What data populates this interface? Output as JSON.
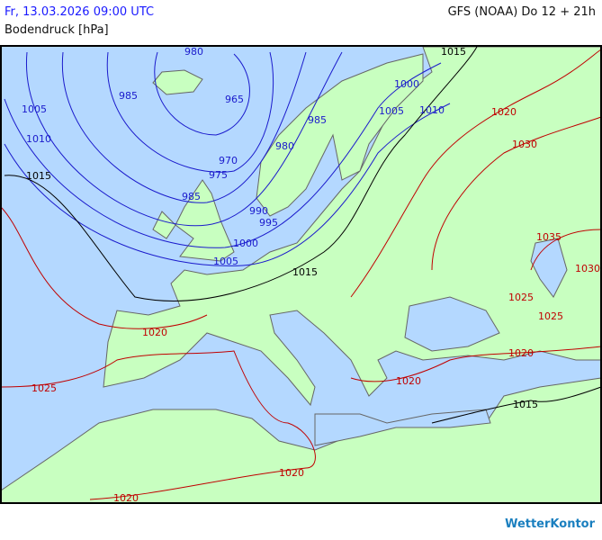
{
  "header": {
    "datetime": "Fr, 13.03.2026 09:00 UTC",
    "model_run": "GFS (NOAA) Do 12 + 21h",
    "parameter": "Bodendruck [hPa]"
  },
  "colors": {
    "sea": "#b4d8ff",
    "land": "#c8ffc0",
    "isobar_low": "#1a1acc",
    "isobar_1015": "#000000",
    "isobar_high": "#c00000",
    "border": "#666666"
  },
  "isobar_labels": [
    "980",
    "985",
    "965",
    "1005",
    "1010",
    "970",
    "975",
    "980",
    "985",
    "985",
    "990",
    "995",
    "1000",
    "1005",
    "1000",
    "1005",
    "1010",
    "1015",
    "1015",
    "1015",
    "1015",
    "1020",
    "1030",
    "1035",
    "1030",
    "1025",
    "1025",
    "1020",
    "1020",
    "1025",
    "1020",
    "1020",
    "1020"
  ],
  "logo": "WetterKontor"
}
